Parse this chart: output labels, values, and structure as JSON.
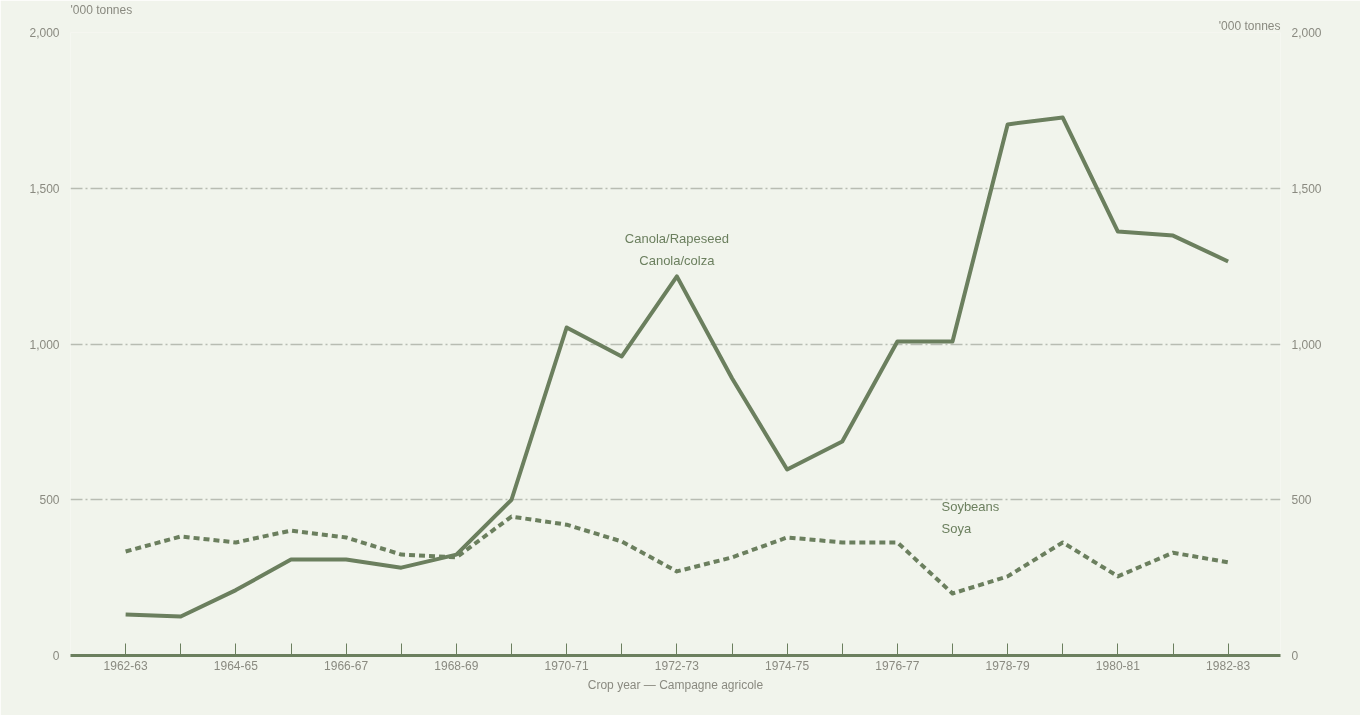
{
  "chart_data": {
    "type": "line",
    "xlabel": "Crop year — Campagne agricole",
    "ylabel": "'000 tonnes",
    "y2label": "'000 tonnes",
    "categories": [
      "1962-63",
      null,
      "1964-65",
      null,
      "1966-67",
      null,
      "1968-69",
      null,
      "1970-71",
      null,
      "1972-73",
      null,
      "1974-75",
      null,
      "1976-77",
      null,
      "1978-79",
      null,
      "1980-81",
      null,
      "1982-83"
    ],
    "series": [
      {
        "name": "Canola/Rapeseed\nCanola/colza",
        "color": "#6b7f5e",
        "line_style": "solid",
        "values": [
          132,
          125,
          210,
          308,
          308,
          282,
          324,
          500,
          1053,
          960,
          1217,
          890,
          597,
          687,
          1008,
          1008,
          1705,
          1727,
          1361,
          1348,
          1265
        ]
      },
      {
        "name": "Soybeans\nSoya",
        "color": "#6b7f5e",
        "line_style": "dashed",
        "values": [
          334,
          382,
          363,
          401,
          379,
          324,
          315,
          446,
          420,
          366,
          270,
          315,
          379,
          363,
          363,
          199,
          254,
          363,
          254,
          330,
          299
        ]
      }
    ],
    "ylim": [
      0,
      2000
    ],
    "yticks": [
      0,
      500,
      {
        "value": 1000,
        "label": "1,000"
      },
      {
        "value": 1500,
        "label": "1,500"
      },
      {
        "value": 2000,
        "label": "2,000"
      }
    ],
    "y2lim": [
      0,
      2000
    ],
    "y2ticks": [
      0,
      500,
      {
        "value": 1000,
        "label": "1,000"
      },
      {
        "value": 1500,
        "label": "1,500"
      },
      {
        "value": 2000,
        "label": "2,000"
      }
    ],
    "grid": "y"
  }
}
